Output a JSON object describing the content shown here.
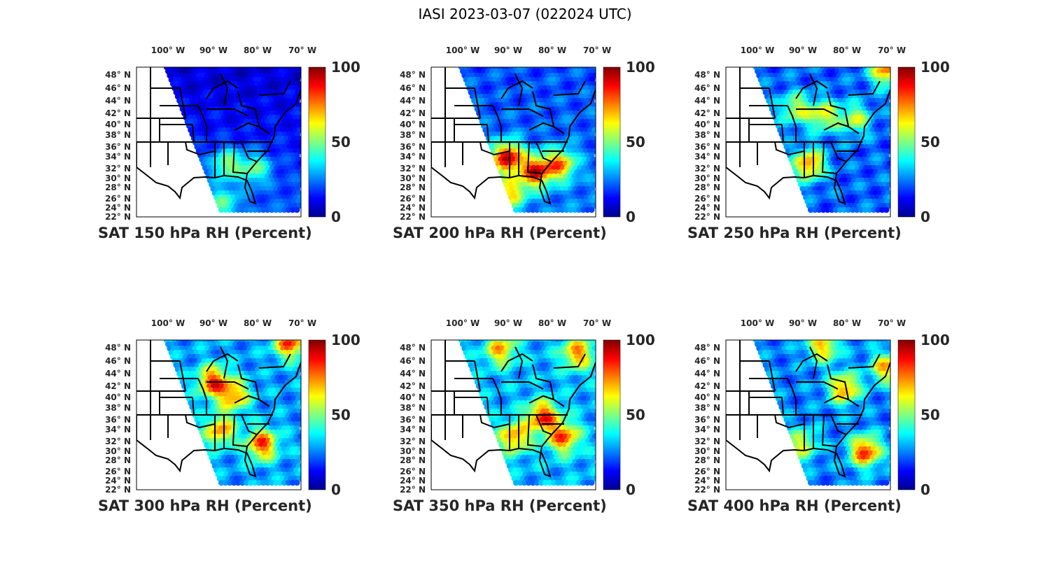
{
  "title": "IASI 2023-03-07 (022024 UTC)",
  "colormap": "jet",
  "colorbar": {
    "min": 0,
    "max": 100,
    "ticks": [
      "100",
      "50",
      "0"
    ]
  },
  "lon_labels": [
    "100° W",
    "90° W",
    "80° W",
    "70° W"
  ],
  "lat_labels": [
    "48° N",
    "46° N",
    "44° N",
    "42° N",
    "40° N",
    "38° N",
    "36° N",
    "34° N",
    "32° N",
    "30° N",
    "28° N",
    "26° N",
    "24° N",
    "22° N"
  ],
  "panels": [
    {
      "title": "SAT 150 hPa RH (Percent)"
    },
    {
      "title": "SAT 200 hPa RH (Percent)"
    },
    {
      "title": "SAT 250 hPa RH (Percent)"
    },
    {
      "title": "SAT 300 hPa RH (Percent)"
    },
    {
      "title": "SAT 350 hPa RH (Percent)"
    },
    {
      "title": "SAT 400 hPa RH (Percent)"
    }
  ]
}
